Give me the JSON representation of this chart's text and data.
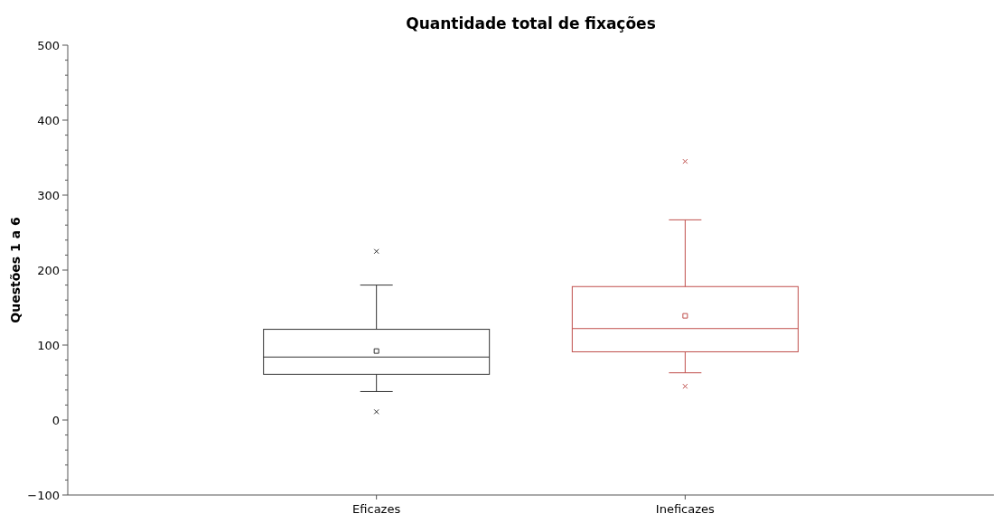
{
  "chart_data": {
    "type": "box",
    "title": "Quantidade total de fixações",
    "ylabel": "Questões 1 a 6",
    "categories": [
      "Eficazes",
      "Ineficazes"
    ],
    "colors": [
      "#333333",
      "#c0504d"
    ],
    "boxes": [
      {
        "low": 38,
        "q1": 61,
        "median": 84,
        "q3": 121,
        "high": 180,
        "mean": 92,
        "outliers": [
          225,
          11
        ]
      },
      {
        "low": 63,
        "q1": 91,
        "median": 122,
        "q3": 178,
        "high": 267,
        "mean": 139,
        "outliers": [
          345,
          45
        ]
      }
    ],
    "ylim": [
      -100,
      500
    ],
    "yticks": [
      -100,
      {
        "value": -80,
        "label": null
      },
      {
        "value": -60,
        "label": null
      },
      {
        "value": -40,
        "label": null
      },
      {
        "value": -20,
        "label": null
      },
      0,
      {
        "value": 20,
        "label": null
      },
      {
        "value": 40,
        "label": null
      },
      {
        "value": 60,
        "label": null
      },
      {
        "value": 80,
        "label": null
      },
      100,
      {
        "value": 120,
        "label": null
      },
      {
        "value": 140,
        "label": null
      },
      {
        "value": 160,
        "label": null
      },
      {
        "value": 180,
        "label": null
      },
      200,
      {
        "value": 220,
        "label": null
      },
      {
        "value": 240,
        "label": null
      },
      {
        "value": 260,
        "label": null
      },
      {
        "value": 280,
        "label": null
      },
      300,
      {
        "value": 320,
        "label": null
      },
      {
        "value": 340,
        "label": null
      },
      {
        "value": 360,
        "label": null
      },
      {
        "value": 380,
        "label": null
      },
      400,
      {
        "value": 420,
        "label": null
      },
      {
        "value": 440,
        "label": null
      },
      {
        "value": 460,
        "label": null
      },
      {
        "value": 480,
        "label": null
      },
      500
    ],
    "marker": "cross",
    "grid": false
  }
}
